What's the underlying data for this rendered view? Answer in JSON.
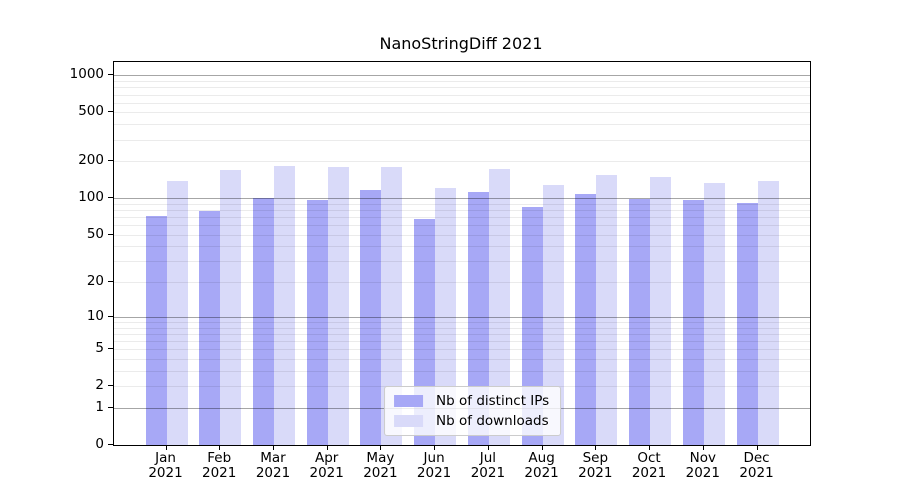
{
  "title": "NanoStringDiff 2021",
  "chart_data": {
    "type": "bar",
    "title": "NanoStringDiff 2021",
    "categories": [
      "Jan 2021",
      "Feb 2021",
      "Mar 2021",
      "Apr 2021",
      "May 2021",
      "Jun 2021",
      "Jul 2021",
      "Aug 2021",
      "Sep 2021",
      "Oct 2021",
      "Nov 2021",
      "Dec 2021"
    ],
    "x_tick_line1": [
      "Jan",
      "Feb",
      "Mar",
      "Apr",
      "May",
      "Jun",
      "Jul",
      "Aug",
      "Sep",
      "Oct",
      "Nov",
      "Dec"
    ],
    "x_tick_line2": [
      "2021",
      "2021",
      "2021",
      "2021",
      "2021",
      "2021",
      "2021",
      "2021",
      "2021",
      "2021",
      "2021",
      "2021"
    ],
    "series": [
      {
        "name": "Nb of distinct IPs",
        "color": "#a7a8f6",
        "values": [
          71,
          78,
          101,
          97,
          117,
          68,
          112,
          85,
          108,
          99,
          96,
          92
        ]
      },
      {
        "name": "Nb of downloads",
        "color": "#d9daf9",
        "values": [
          137,
          170,
          184,
          181,
          180,
          122,
          174,
          128,
          156,
          150,
          133,
          138
        ]
      }
    ],
    "xlabel": "",
    "ylabel": "",
    "y_ticks": [
      0,
      1,
      2,
      5,
      10,
      20,
      50,
      100,
      200,
      500,
      1000
    ],
    "y_scale": "log10(1+y)",
    "ylim": [
      0,
      1285
    ],
    "grid": "on",
    "legend_position": "lower center"
  }
}
